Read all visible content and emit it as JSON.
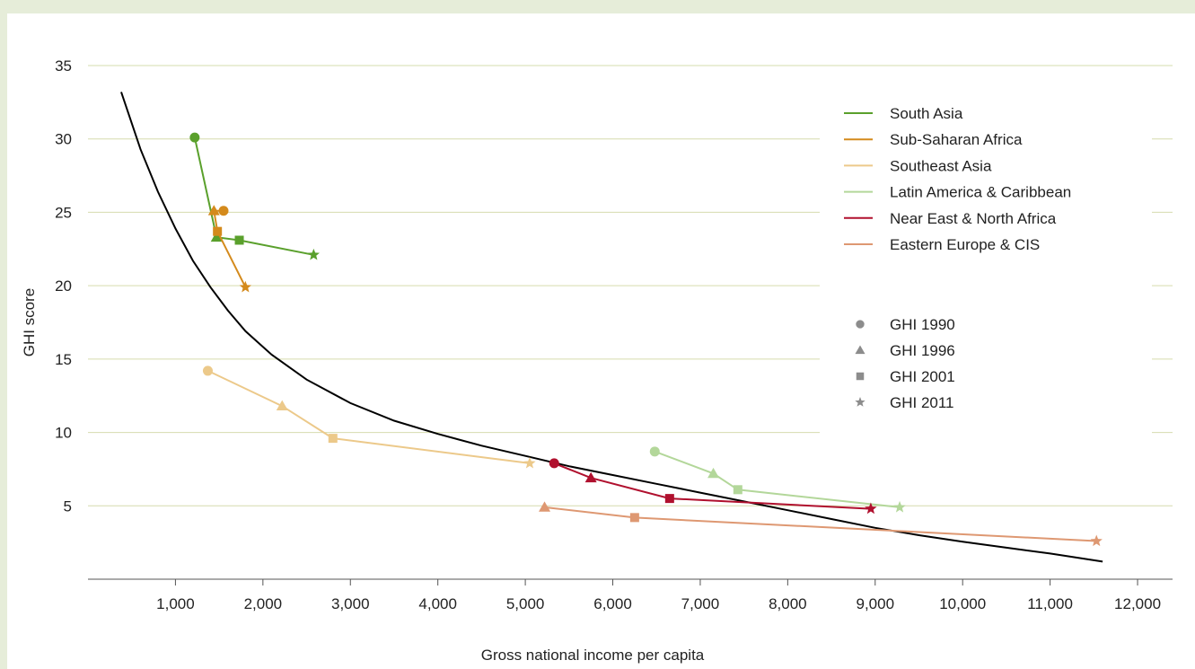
{
  "chart_data": {
    "type": "scatter",
    "title": "",
    "xlabel": "Gross national income per capita",
    "ylabel": "GHI score",
    "xlim": [
      0,
      12400
    ],
    "ylim": [
      0,
      35
    ],
    "x_ticks": [
      1000,
      2000,
      3000,
      4000,
      5000,
      6000,
      7000,
      8000,
      9000,
      10000,
      11000,
      12000
    ],
    "x_tick_labels": [
      "1,000",
      "2,000",
      "3,000",
      "4,000",
      "5,000",
      "6,000",
      "7,000",
      "8,000",
      "9,000",
      "10,000",
      "11,000",
      "12,000"
    ],
    "y_ticks": [
      5,
      10,
      15,
      20,
      25,
      30,
      35
    ],
    "y_tick_labels": [
      "5",
      "10",
      "15",
      "20",
      "25",
      "30",
      "35"
    ],
    "grid": "horizontal",
    "legend_position": "top-right",
    "marker_legend": [
      {
        "label": "GHI 1990",
        "marker": "circle"
      },
      {
        "label": "GHI 1996",
        "marker": "triangle"
      },
      {
        "label": "GHI 2001",
        "marker": "square"
      },
      {
        "label": "GHI 2011",
        "marker": "star"
      }
    ],
    "series": [
      {
        "name": "South Asia",
        "color": "#5aa02c",
        "points": [
          {
            "x": 1220,
            "y": 30.1
          },
          {
            "x": 1470,
            "y": 23.3
          },
          {
            "x": 1730,
            "y": 23.1
          },
          {
            "x": 2580,
            "y": 22.1
          }
        ]
      },
      {
        "name": "Sub-Saharan Africa",
        "color": "#d48a1c",
        "points": [
          {
            "x": 1550,
            "y": 25.1
          },
          {
            "x": 1440,
            "y": 25.1
          },
          {
            "x": 1480,
            "y": 23.7
          },
          {
            "x": 1800,
            "y": 19.9
          }
        ]
      },
      {
        "name": "Southeast Asia",
        "color": "#ecc98a",
        "points": [
          {
            "x": 1370,
            "y": 14.2
          },
          {
            "x": 2220,
            "y": 11.8
          },
          {
            "x": 2800,
            "y": 9.6
          },
          {
            "x": 5050,
            "y": 7.9
          }
        ]
      },
      {
        "name": "Latin America & Caribbean",
        "color": "#b3d79a",
        "points": [
          {
            "x": 6480,
            "y": 8.7
          },
          {
            "x": 7150,
            "y": 7.2
          },
          {
            "x": 7430,
            "y": 6.1
          },
          {
            "x": 9280,
            "y": 4.9
          }
        ]
      },
      {
        "name": "Near East & North Africa",
        "color": "#b0102e",
        "points": [
          {
            "x": 5330,
            "y": 7.9
          },
          {
            "x": 5750,
            "y": 6.9
          },
          {
            "x": 6650,
            "y": 5.5
          },
          {
            "x": 8950,
            "y": 4.8
          }
        ]
      },
      {
        "name": "Eastern Europe & CIS",
        "color": "#de9872",
        "points": [
          {
            "x": 5220,
            "y": 4.9
          },
          {
            "x": 6250,
            "y": 4.2
          },
          {
            "x": 11530,
            "y": 2.6
          }
        ]
      }
    ],
    "trend_curve": {
      "color": "#000000",
      "points": [
        [
          380,
          33.2
        ],
        [
          600,
          29.3
        ],
        [
          800,
          26.4
        ],
        [
          1000,
          23.9
        ],
        [
          1200,
          21.7
        ],
        [
          1400,
          19.9
        ],
        [
          1600,
          18.3
        ],
        [
          1800,
          16.9
        ],
        [
          2100,
          15.3
        ],
        [
          2500,
          13.6
        ],
        [
          3000,
          12.0
        ],
        [
          3500,
          10.8
        ],
        [
          4000,
          9.9
        ],
        [
          4500,
          9.1
        ],
        [
          5000,
          8.4
        ],
        [
          5500,
          7.7
        ],
        [
          6000,
          7.1
        ],
        [
          6500,
          6.5
        ],
        [
          7000,
          5.9
        ],
        [
          7500,
          5.3
        ],
        [
          8000,
          4.7
        ],
        [
          8500,
          4.1
        ],
        [
          9000,
          3.5
        ],
        [
          9500,
          3.0
        ],
        [
          10000,
          2.55
        ],
        [
          10500,
          2.15
        ],
        [
          11000,
          1.75
        ],
        [
          11600,
          1.2
        ]
      ]
    }
  }
}
